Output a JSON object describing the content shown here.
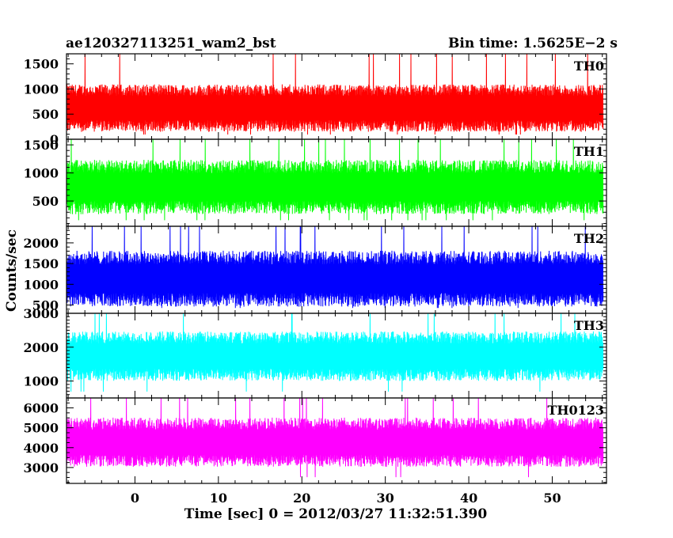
{
  "header": {
    "title": "ae120327113251_wam2_bst",
    "bin_time": "Bin time: 1.5625E−2 s"
  },
  "chart_data": {
    "type": "line",
    "ylabel": "Counts/sec",
    "xlabel": "Time [sec] 0 = 2012/03/27 11:32:51.390",
    "xlim": [
      -8.2,
      56.5
    ],
    "x_ticks": [
      0,
      10,
      20,
      30,
      40,
      50
    ],
    "x_range_data": [
      -8.2,
      56.1
    ],
    "panels": [
      {
        "name": "TH0",
        "color": "#ff0000",
        "ylim": [
          0,
          1700
        ],
        "ticks": [
          0,
          500,
          1000,
          1500
        ],
        "mean": 630,
        "amp": 420,
        "spike": 1720
      },
      {
        "name": "TH1",
        "color": "#00ff00",
        "ylim": [
          50,
          1600
        ],
        "ticks": [
          500,
          1000,
          1500
        ],
        "mean": 760,
        "amp": 430,
        "spike": 1600
      },
      {
        "name": "TH2",
        "color": "#0000ff",
        "ylim": [
          300,
          2400
        ],
        "ticks": [
          500,
          1000,
          1500,
          2000
        ],
        "mean": 1150,
        "amp": 600,
        "spike": 2450
      },
      {
        "name": "TH3",
        "color": "#00ffff",
        "ylim": [
          500,
          3000
        ],
        "ticks": [
          1000,
          2000,
          3000
        ],
        "mean": 1750,
        "amp": 650,
        "spike": 3100
      },
      {
        "name": "TH0123",
        "color": "#ff00ff",
        "ylim": [
          2200,
          6500
        ],
        "ticks": [
          3000,
          4000,
          5000,
          6000
        ],
        "mean": 4300,
        "amp": 1100,
        "spike": 6600
      }
    ]
  }
}
